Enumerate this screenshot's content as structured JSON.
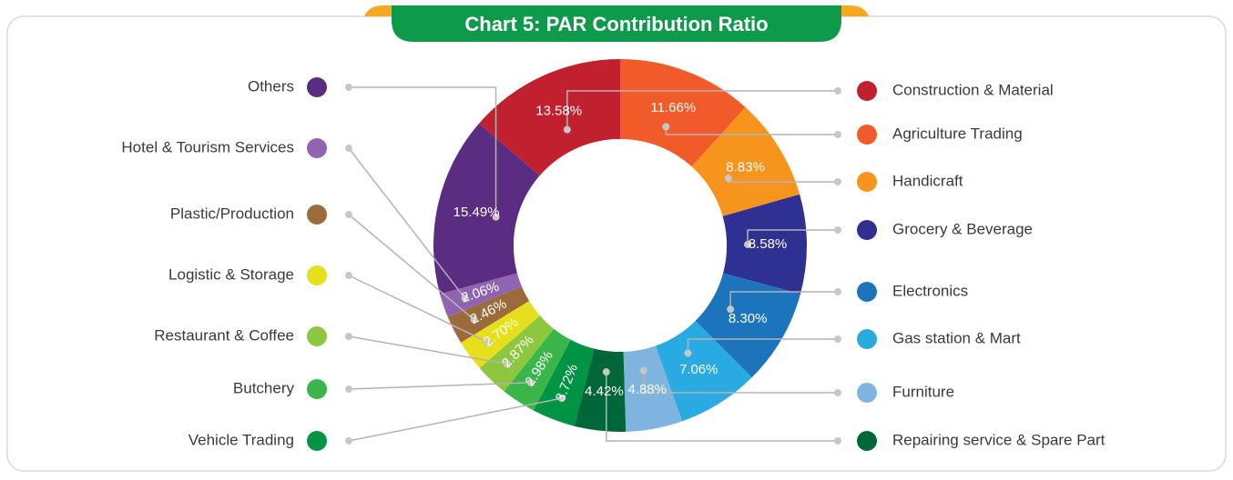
{
  "chart_data": {
    "type": "donut",
    "title": "Chart 5: PAR Contribution Ratio",
    "categories": [
      "Construction & Material",
      "Agriculture Trading",
      "Handicraft",
      "Grocery & Beverage",
      "Electronics",
      "Gas station & Mart",
      "Furniture",
      "Repairing service & Spare Part",
      "Vehicle Trading",
      "Butchery",
      "Restaurant & Coffee",
      "Logistic & Storage",
      "Plastic/Production",
      "Hotel & Tourism Services",
      "Others"
    ],
    "values": [
      13.58,
      11.66,
      8.83,
      8.58,
      8.3,
      7.06,
      4.88,
      4.42,
      3.72,
      2.98,
      2.87,
      2.7,
      2.46,
      2.06,
      15.49
    ],
    "value_labels": [
      "13.58%",
      "11.66%",
      "8.83%",
      "8.58%",
      "8.30%",
      "7.06%",
      "4.88%",
      "4.42%",
      "3.72%",
      "2.98%",
      "2.87%",
      "2.70%",
      "2.46%",
      "2.06%",
      "15.49%"
    ],
    "colors": [
      "#c1202f",
      "#f15a29",
      "#f7941d",
      "#2e3192",
      "#1c75bc",
      "#29aae1",
      "#7fb3e0",
      "#006838",
      "#009444",
      "#39b54a",
      "#8dc63f",
      "#e6df1c",
      "#9b6b3c",
      "#8f64b1",
      "#5b2d82"
    ]
  }
}
